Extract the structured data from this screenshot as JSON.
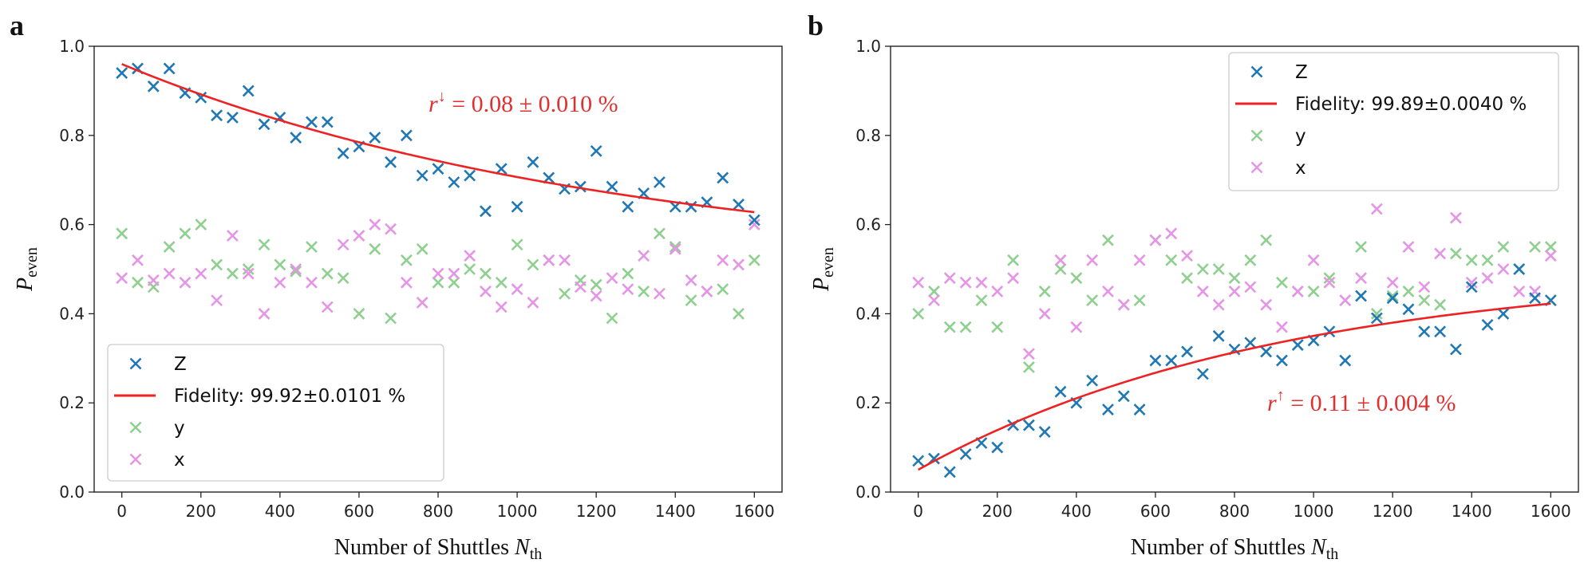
{
  "chart_data": [
    {
      "panel_label": "a",
      "type": "scatter",
      "xlabel": "Number of Shuttles",
      "xlabel_math": "N",
      "xlabel_sub": "th",
      "ylabel_math": "P",
      "ylabel_sub": "even",
      "xlim": [
        -70,
        1670
      ],
      "ylim": [
        0,
        1.0
      ],
      "xticks": [
        "0",
        "200",
        "400",
        "600",
        "800",
        "1000",
        "1200",
        "1400",
        "1600"
      ],
      "yticks": [
        "0.0",
        "0.2",
        "0.4",
        "0.6",
        "0.8",
        "1.0"
      ],
      "legend_position": "bottom-left",
      "annotation": {
        "symbol": "r",
        "sup": "↓",
        "text": " = 0.08 ± 0.010 %"
      },
      "series": [
        {
          "name": "Z",
          "marker": "x",
          "color": "#1f77b4",
          "x": [
            0,
            40,
            80,
            120,
            160,
            200,
            240,
            280,
            320,
            360,
            400,
            440,
            480,
            520,
            560,
            600,
            640,
            680,
            720,
            760,
            800,
            840,
            880,
            920,
            960,
            1000,
            1040,
            1080,
            1120,
            1160,
            1200,
            1240,
            1280,
            1320,
            1360,
            1400,
            1440,
            1480,
            1520,
            1560,
            1600
          ],
          "y": [
            0.94,
            0.95,
            0.91,
            0.95,
            0.895,
            0.885,
            0.845,
            0.84,
            0.9,
            0.825,
            0.84,
            0.795,
            0.83,
            0.83,
            0.76,
            0.775,
            0.795,
            0.74,
            0.8,
            0.71,
            0.725,
            0.695,
            0.71,
            0.63,
            0.725,
            0.64,
            0.74,
            0.705,
            0.68,
            0.685,
            0.765,
            0.685,
            0.64,
            0.67,
            0.695,
            0.64,
            0.64,
            0.65,
            0.705,
            0.645,
            0.61
          ]
        },
        {
          "name": "Fidelity: 99.92±0.0101 %",
          "type": "line",
          "color": "#ee2222",
          "fit": {
            "A": 0.5,
            "B": 0.46,
            "r": 0.0008
          }
        },
        {
          "name": "y",
          "marker": "x",
          "color": "#8fcf8f",
          "x": [
            0,
            40,
            80,
            120,
            160,
            200,
            240,
            280,
            320,
            360,
            400,
            440,
            480,
            520,
            560,
            600,
            640,
            680,
            720,
            760,
            800,
            840,
            880,
            920,
            960,
            1000,
            1040,
            1080,
            1120,
            1160,
            1200,
            1240,
            1280,
            1320,
            1360,
            1400,
            1440,
            1480,
            1520,
            1560,
            1600
          ],
          "y": [
            0.58,
            0.47,
            0.46,
            0.55,
            0.58,
            0.6,
            0.51,
            0.49,
            0.5,
            0.555,
            0.51,
            0.495,
            0.55,
            0.49,
            0.48,
            0.4,
            0.545,
            0.39,
            0.52,
            0.545,
            0.47,
            0.47,
            0.5,
            0.49,
            0.47,
            0.555,
            0.51,
            0.52,
            0.445,
            0.475,
            0.465,
            0.39,
            0.49,
            0.45,
            0.58,
            0.55,
            0.43,
            0.45,
            0.455,
            0.4,
            0.52
          ]
        },
        {
          "name": "x",
          "marker": "x",
          "color": "#e595e5",
          "x": [
            0,
            40,
            80,
            120,
            160,
            200,
            240,
            280,
            320,
            360,
            400,
            440,
            480,
            520,
            560,
            600,
            640,
            680,
            720,
            760,
            800,
            840,
            880,
            920,
            960,
            1000,
            1040,
            1080,
            1120,
            1160,
            1200,
            1240,
            1280,
            1320,
            1360,
            1400,
            1440,
            1480,
            1520,
            1560,
            1600
          ],
          "y": [
            0.48,
            0.52,
            0.475,
            0.49,
            0.47,
            0.49,
            0.43,
            0.575,
            0.49,
            0.4,
            0.47,
            0.5,
            0.47,
            0.415,
            0.555,
            0.575,
            0.6,
            0.59,
            0.47,
            0.425,
            0.49,
            0.49,
            0.53,
            0.45,
            0.415,
            0.455,
            0.425,
            0.52,
            0.52,
            0.46,
            0.44,
            0.48,
            0.455,
            0.53,
            0.445,
            0.545,
            0.475,
            0.45,
            0.52,
            0.51,
            0.6
          ]
        }
      ]
    },
    {
      "panel_label": "b",
      "type": "scatter",
      "xlabel": "Number of Shuttles",
      "xlabel_math": "N",
      "xlabel_sub": "th",
      "ylabel_math": "P",
      "ylabel_sub": "even",
      "xlim": [
        -70,
        1670
      ],
      "ylim": [
        0,
        1.0
      ],
      "xticks": [
        "0",
        "200",
        "400",
        "600",
        "800",
        "1000",
        "1200",
        "1400",
        "1600"
      ],
      "yticks": [
        "0.0",
        "0.2",
        "0.4",
        "0.6",
        "0.8",
        "1.0"
      ],
      "legend_position": "top-right",
      "annotation": {
        "symbol": "r",
        "sup": "↑",
        "text": " = 0.11 ± 0.004 %"
      },
      "series": [
        {
          "name": "Z",
          "marker": "x",
          "color": "#1f77b4",
          "x": [
            0,
            40,
            80,
            120,
            160,
            200,
            240,
            280,
            320,
            360,
            400,
            440,
            480,
            520,
            560,
            600,
            640,
            680,
            720,
            760,
            800,
            840,
            880,
            920,
            960,
            1000,
            1040,
            1080,
            1120,
            1160,
            1200,
            1240,
            1280,
            1320,
            1360,
            1400,
            1440,
            1480,
            1520,
            1560,
            1600
          ],
          "y": [
            0.07,
            0.075,
            0.045,
            0.085,
            0.11,
            0.1,
            0.15,
            0.15,
            0.135,
            0.225,
            0.2,
            0.25,
            0.185,
            0.215,
            0.185,
            0.295,
            0.295,
            0.315,
            0.265,
            0.35,
            0.32,
            0.335,
            0.315,
            0.295,
            0.33,
            0.34,
            0.36,
            0.295,
            0.44,
            0.39,
            0.435,
            0.41,
            0.36,
            0.36,
            0.32,
            0.46,
            0.375,
            0.4,
            0.5,
            0.435,
            0.43
          ]
        },
        {
          "name": "Fidelity: 99.89±0.0040 %",
          "type": "line",
          "color": "#ee2222",
          "fit": {
            "A": 0.5,
            "B": -0.45,
            "r": 0.0011
          }
        },
        {
          "name": "y",
          "marker": "x",
          "color": "#8fcf8f",
          "x": [
            0,
            40,
            80,
            120,
            160,
            200,
            240,
            280,
            320,
            360,
            400,
            440,
            480,
            520,
            560,
            600,
            640,
            680,
            720,
            760,
            800,
            840,
            880,
            920,
            960,
            1000,
            1040,
            1080,
            1120,
            1160,
            1200,
            1240,
            1280,
            1320,
            1360,
            1400,
            1440,
            1480,
            1520,
            1560,
            1600
          ],
          "y": [
            0.4,
            0.45,
            0.37,
            0.37,
            0.43,
            0.37,
            0.52,
            0.28,
            0.45,
            0.5,
            0.48,
            0.43,
            0.565,
            0.42,
            0.43,
            0.565,
            0.52,
            0.48,
            0.5,
            0.5,
            0.48,
            0.52,
            0.565,
            0.47,
            0.45,
            0.45,
            0.48,
            0.43,
            0.55,
            0.4,
            0.44,
            0.45,
            0.43,
            0.42,
            0.535,
            0.52,
            0.52,
            0.55,
            0.5,
            0.55,
            0.55
          ]
        },
        {
          "name": "x",
          "marker": "x",
          "color": "#e595e5",
          "x": [
            0,
            40,
            80,
            120,
            160,
            200,
            240,
            280,
            320,
            360,
            400,
            440,
            480,
            520,
            560,
            600,
            640,
            680,
            720,
            760,
            800,
            840,
            880,
            920,
            960,
            1000,
            1040,
            1080,
            1120,
            1160,
            1200,
            1240,
            1280,
            1320,
            1360,
            1400,
            1440,
            1480,
            1520,
            1560,
            1600
          ],
          "y": [
            0.47,
            0.43,
            0.48,
            0.47,
            0.47,
            0.45,
            0.48,
            0.31,
            0.4,
            0.52,
            0.37,
            0.52,
            0.45,
            0.42,
            0.52,
            0.565,
            0.58,
            0.53,
            0.45,
            0.42,
            0.45,
            0.46,
            0.42,
            0.37,
            0.45,
            0.52,
            0.47,
            0.43,
            0.48,
            0.635,
            0.47,
            0.55,
            0.46,
            0.535,
            0.615,
            0.47,
            0.48,
            0.5,
            0.45,
            0.45,
            0.53
          ]
        }
      ]
    }
  ]
}
